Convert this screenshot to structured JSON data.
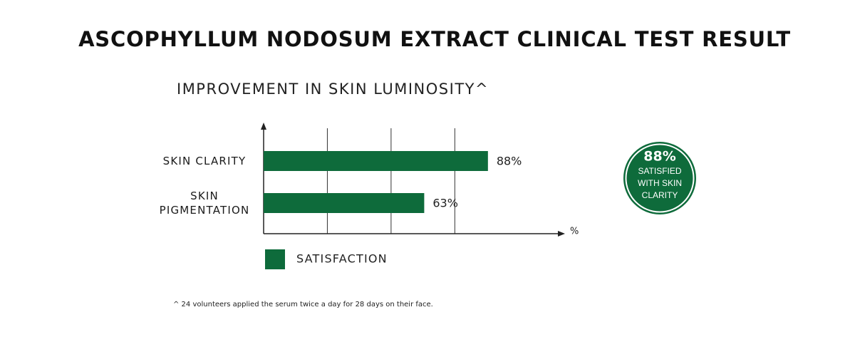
{
  "chart_data": {
    "type": "bar",
    "title": "ASCOPHYLLUM NODOSUM EXTRACT CLINICAL TEST RESULT",
    "subtitle": "IMPROVEMENT IN SKIN LUMINOSITY^",
    "categories": [
      "SKIN CLARITY",
      "SKIN PIGMENTATION"
    ],
    "series": [
      {
        "name": "SATISFACTION",
        "color": "#0e6b3b",
        "values": [
          88,
          63
        ],
        "value_labels": [
          "88%",
          "63%"
        ]
      }
    ],
    "xlabel": "%",
    "xlim": [
      0,
      116
    ],
    "xticks": [
      25,
      50,
      75
    ],
    "grid": true,
    "badge": {
      "headline": "88%",
      "lines": [
        "SATISFIED",
        "WITH SKIN",
        "CLARITY"
      ]
    },
    "footnote": "^ 24 volunteers applied the serum twice a day for 28 days on their face."
  }
}
